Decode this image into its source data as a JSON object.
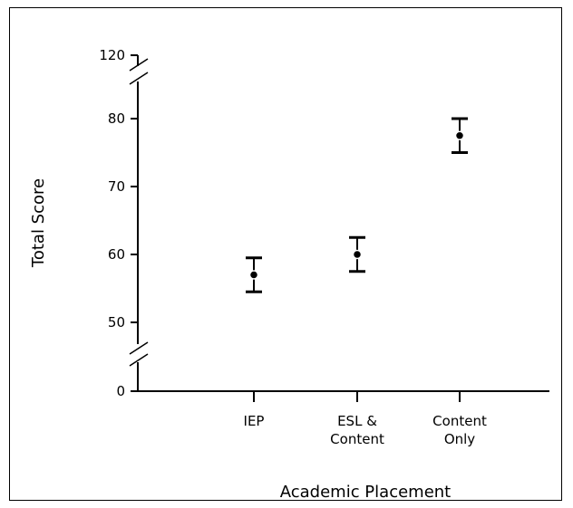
{
  "chart_data": {
    "type": "scatter",
    "title": "",
    "xlabel": "Academic Placement",
    "ylabel": "Total Score",
    "categories": [
      [
        "IEP"
      ],
      [
        "ESL &",
        "Content"
      ],
      [
        "Content",
        "Only"
      ]
    ],
    "y_ticks": [
      "0",
      "50",
      "60",
      "70",
      "80",
      "120"
    ],
    "axis_breaks": [
      "0-50",
      "80-120"
    ],
    "points": [
      {
        "category": "IEP",
        "mean": 57,
        "lower": 54.5,
        "upper": 59.5
      },
      {
        "category": "ESL & Content",
        "mean": 60,
        "lower": 57.5,
        "upper": 62.5
      },
      {
        "category": "Content Only",
        "mean": 77.5,
        "lower": 75,
        "upper": 80
      }
    ],
    "grid": false,
    "legend": "none",
    "colors": {
      "ink": "#000000",
      "background": "#ffffff"
    }
  }
}
